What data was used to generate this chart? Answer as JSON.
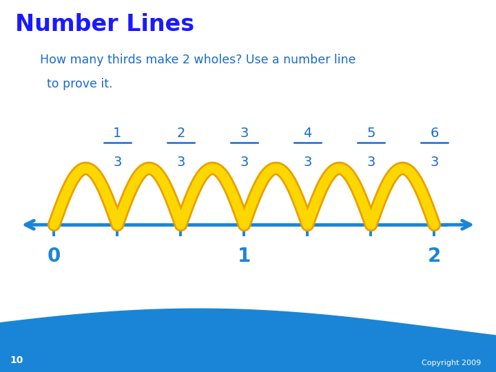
{
  "title": "Number Lines",
  "subtitle_line1": "How many thirds make 2 wholes? Use a number line",
  "subtitle_line2": "to prove it.",
  "title_color": "#1a1aff",
  "subtitle_color": "#1a6acc",
  "bg_color": "#ffffff",
  "line_color": "#1a85d6",
  "arc_color": "#FFD700",
  "arc_edge_color": "#E8A000",
  "tick_positions": [
    0,
    0.3333,
    0.6667,
    1.0,
    1.3333,
    1.6667,
    2.0
  ],
  "whole_labels": [
    [
      0,
      "0"
    ],
    [
      1.0,
      "1"
    ],
    [
      2.0,
      "2"
    ]
  ],
  "fraction_labels": [
    [
      0.3333,
      "1",
      "3"
    ],
    [
      0.6667,
      "2",
      "3"
    ],
    [
      1.0,
      "3",
      "3"
    ],
    [
      1.3333,
      "4",
      "3"
    ],
    [
      1.6667,
      "5",
      "3"
    ],
    [
      2.0,
      "6",
      "3"
    ]
  ],
  "arc_starts": [
    0,
    0.3333,
    0.6667,
    1.0,
    1.3333,
    1.6667
  ],
  "arc_ends": [
    0.3333,
    0.6667,
    1.0,
    1.3333,
    1.6667,
    2.0
  ],
  "xmin": -0.18,
  "xmax": 2.22,
  "wave_color": "#1a85d6",
  "page_number": "10",
  "copyright": "Copyright 2009"
}
